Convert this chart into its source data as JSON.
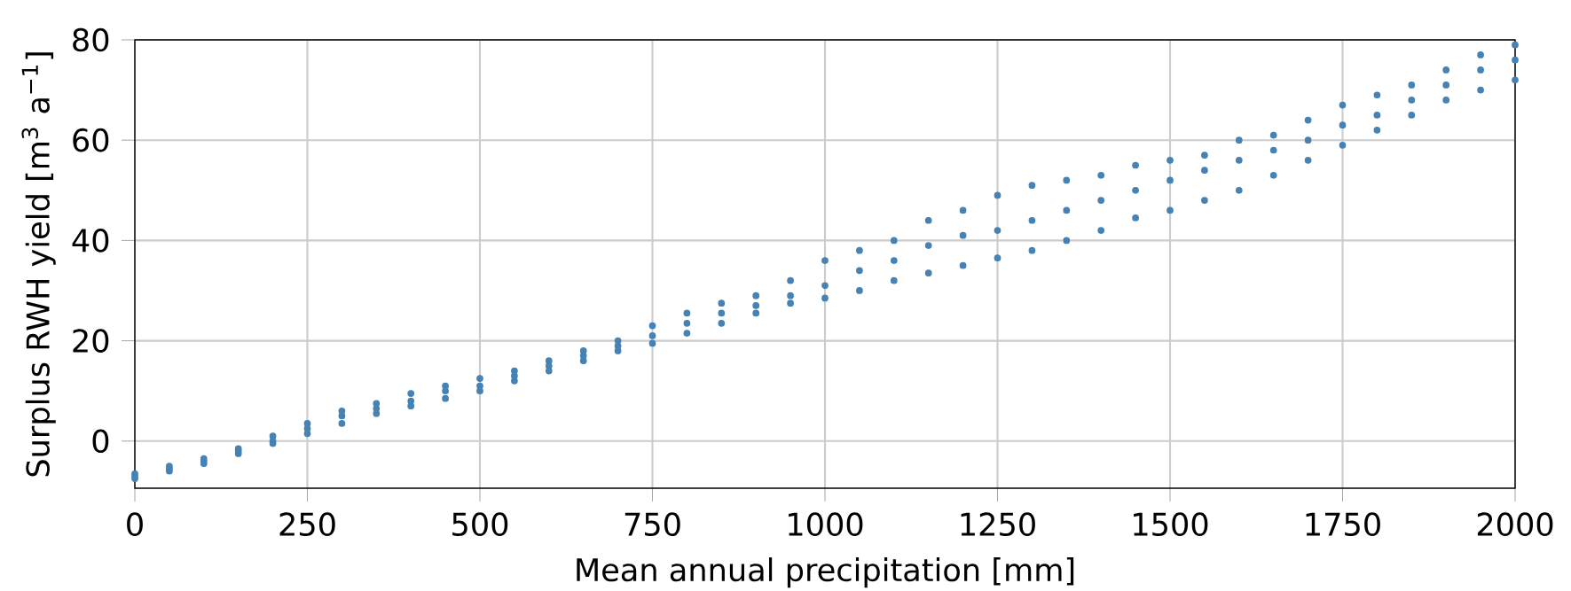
{
  "chart_data": {
    "type": "scatter",
    "xlabel": "Mean annual precipitation [mm]",
    "ylabel": "Surplus RWH yield [m$^{3}$ a$^{−1}$]",
    "x": [
      0,
      0,
      0,
      50,
      50,
      50,
      100,
      100,
      100,
      150,
      150,
      150,
      200,
      200,
      200,
      250,
      250,
      250,
      300,
      300,
      300,
      350,
      350,
      350,
      400,
      400,
      400,
      450,
      450,
      450,
      500,
      500,
      500,
      550,
      550,
      550,
      600,
      600,
      600,
      650,
      650,
      650,
      700,
      700,
      700,
      750,
      750,
      750,
      800,
      800,
      800,
      850,
      850,
      850,
      900,
      900,
      900,
      950,
      950,
      950,
      1000,
      1000,
      1000,
      1050,
      1050,
      1050,
      1100,
      1100,
      1100,
      1150,
      1150,
      1150,
      1200,
      1200,
      1200,
      1250,
      1250,
      1250,
      1300,
      1300,
      1300,
      1350,
      1350,
      1350,
      1400,
      1400,
      1400,
      1450,
      1450,
      1450,
      1500,
      1500,
      1500,
      1550,
      1550,
      1550,
      1600,
      1600,
      1600,
      1650,
      1650,
      1650,
      1700,
      1700,
      1700,
      1750,
      1750,
      1750,
      1800,
      1800,
      1800,
      1850,
      1850,
      1850,
      1900,
      1900,
      1900,
      1950,
      1950,
      1950,
      2000,
      2000,
      2000
    ],
    "values": [
      -7.5,
      -7,
      -6.5,
      -6,
      -5.5,
      -5,
      -4.5,
      -4,
      -3.5,
      -2.5,
      -2,
      -1.5,
      -0.5,
      0,
      1,
      1.5,
      2.5,
      3.5,
      3.5,
      5,
      6,
      5.5,
      6.5,
      7.5,
      7,
      8,
      9.5,
      8.5,
      10,
      11,
      10,
      11,
      12.5,
      12,
      13,
      14,
      14,
      15,
      16,
      16,
      17,
      18,
      18,
      19,
      20,
      19.5,
      21,
      23,
      21.5,
      23.5,
      25.5,
      23.5,
      25.5,
      27.5,
      25.5,
      27,
      29,
      27.5,
      29,
      32,
      28.5,
      31,
      36,
      30,
      34,
      38,
      32,
      36,
      40,
      33.5,
      39,
      44,
      35,
      41,
      46,
      36.5,
      42,
      49,
      38,
      44,
      51,
      40,
      46,
      52,
      42,
      48,
      53,
      44.5,
      50,
      55,
      46,
      52,
      56,
      48,
      54,
      57,
      50,
      56,
      60,
      53,
      58,
      61,
      56,
      60,
      64,
      59,
      63,
      67,
      62,
      65,
      69,
      65,
      68,
      71,
      68,
      71,
      74,
      70,
      74,
      77,
      72,
      76,
      79
    ],
    "color": "#4682b4",
    "marker": "circle",
    "xlim": [
      0,
      2000
    ],
    "ylim": [
      -9.4,
      80
    ],
    "xticks": [
      0,
      250,
      500,
      750,
      1000,
      1250,
      1500,
      1750,
      2000
    ],
    "yticks": [
      0,
      20,
      40,
      60,
      80
    ],
    "grid": true
  }
}
